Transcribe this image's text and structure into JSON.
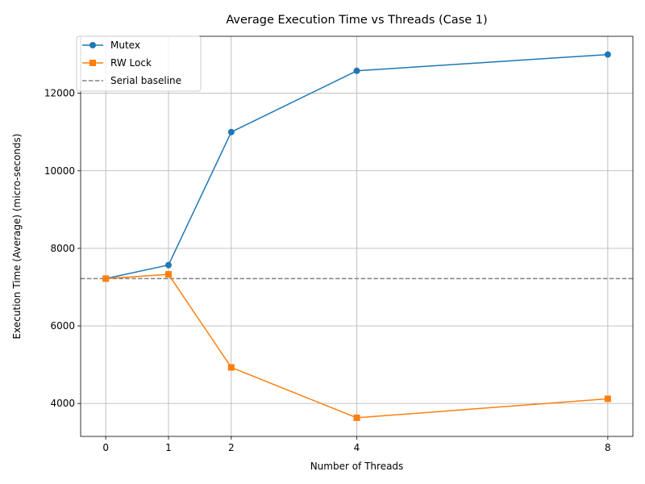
{
  "chart_data": {
    "type": "line",
    "title": "Average Execution Time vs Threads (Case 1)",
    "xlabel": "Number of Threads",
    "ylabel": "Execution Time (Average) (micro-seconds)",
    "x": [
      0,
      1,
      2,
      4,
      8
    ],
    "xticks": [
      0,
      1,
      2,
      4,
      8
    ],
    "xlim": [
      -0.4,
      8.4
    ],
    "yticks": [
      4000,
      6000,
      8000,
      10000,
      12000
    ],
    "ylim": [
      3150,
      13470
    ],
    "grid": true,
    "legend_position": "top-left",
    "series": [
      {
        "name": "Mutex",
        "values": [
          7220,
          7570,
          11000,
          12580,
          13000
        ],
        "color": "#1f77b4",
        "marker": "circle"
      },
      {
        "name": "RW Lock",
        "values": [
          7220,
          7330,
          4930,
          3630,
          4120
        ],
        "color": "#ff7f0e",
        "marker": "square"
      }
    ],
    "baseline": {
      "name": "Serial baseline",
      "value": 7220,
      "color": "#808080",
      "style": "dashed"
    }
  }
}
